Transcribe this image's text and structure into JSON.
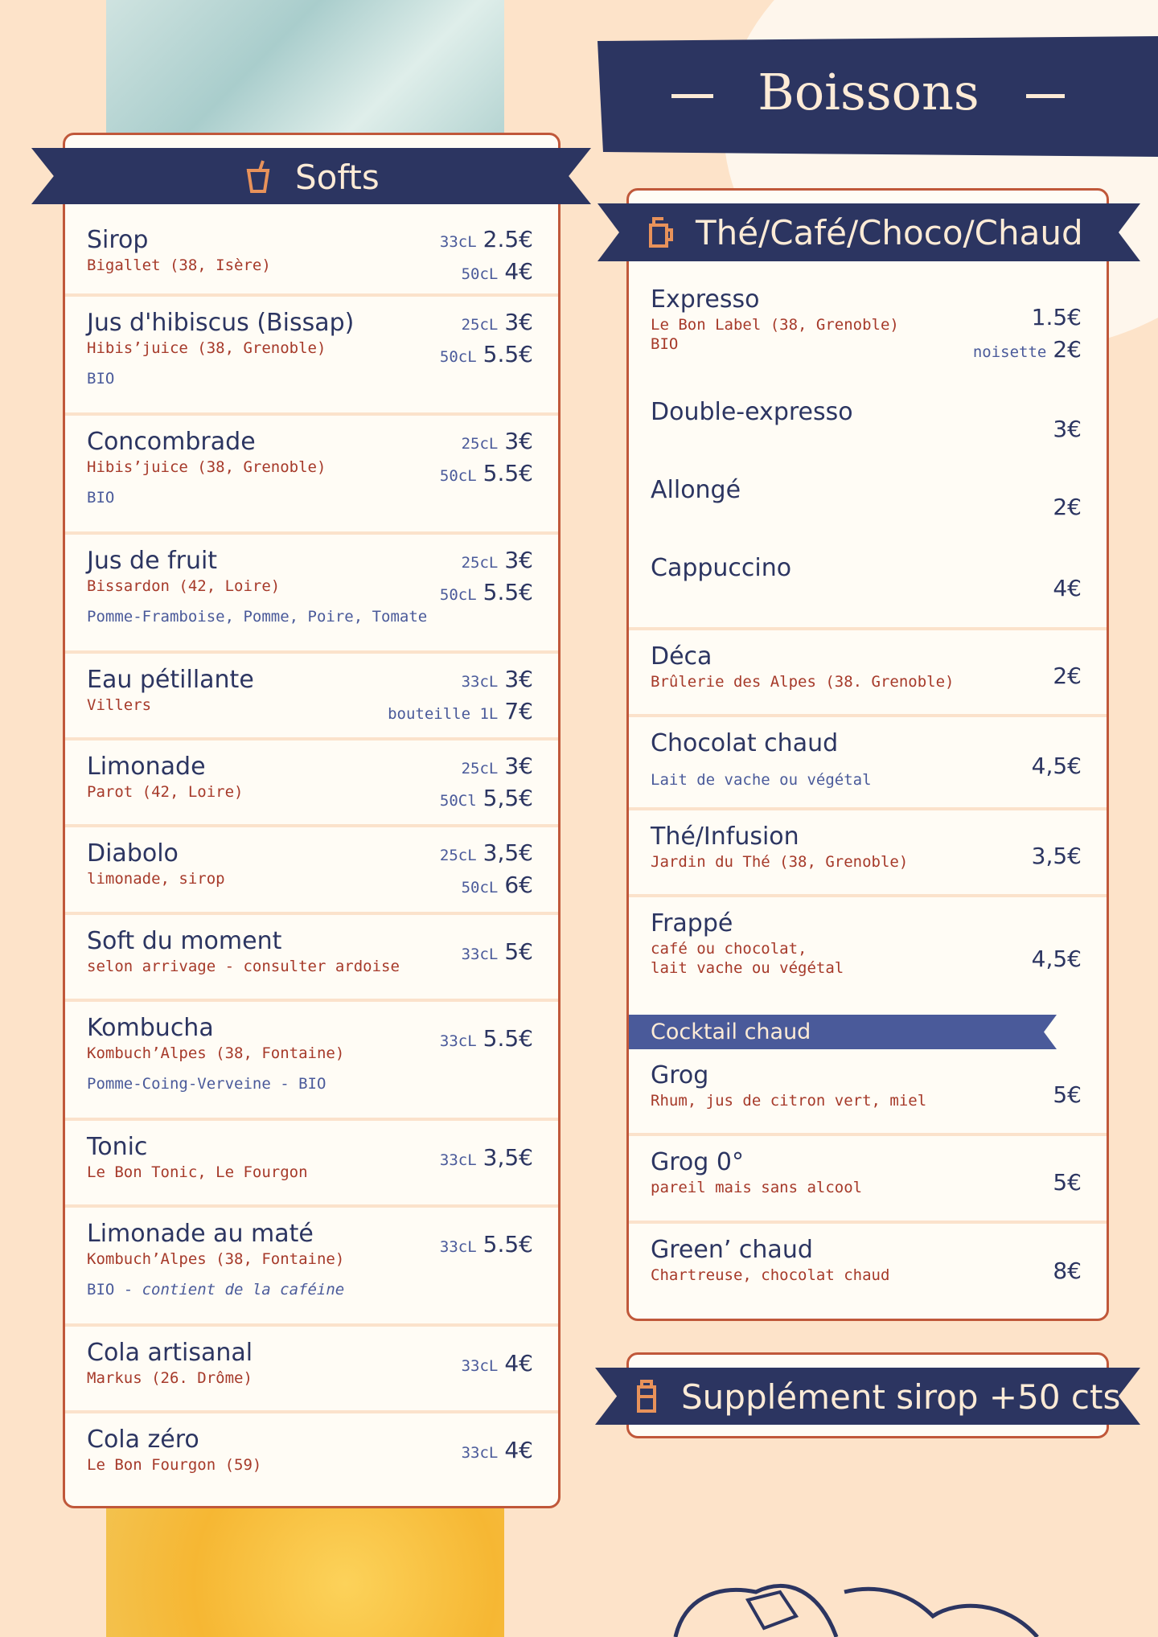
{
  "title": "Boissons",
  "softs": {
    "title": "Softs",
    "items": [
      {
        "name": "Sirop",
        "origin": [
          "Bigallet (38, Isère)"
        ],
        "prices": [
          {
            "size": "33cL",
            "price": "2.5€"
          },
          {
            "size": "50cL",
            "price": "4€"
          }
        ]
      },
      {
        "name": "Jus d'hibiscus (Bissap)",
        "origin": [
          "Hibis’juice (38, Grenoble)"
        ],
        "note": [
          {
            "text": "BIO"
          }
        ],
        "prices": [
          {
            "size": "25cL",
            "price": "3€"
          },
          {
            "size": "50cL",
            "price": "5.5€"
          }
        ]
      },
      {
        "name": "Concombrade",
        "origin": [
          "Hibis’juice (38, Grenoble)"
        ],
        "note": [
          {
            "text": "BIO"
          }
        ],
        "prices": [
          {
            "size": "25cL",
            "price": "3€"
          },
          {
            "size": "50cL",
            "price": "5.5€"
          }
        ]
      },
      {
        "name": "Jus de fruit",
        "origin": [
          "Bissardon (42, Loire)"
        ],
        "note": [
          {
            "text": "Pomme-Framboise, Pomme, Poire, Tomate"
          }
        ],
        "prices": [
          {
            "size": "25cL",
            "price": "3€"
          },
          {
            "size": "50cL",
            "price": "5.5€"
          }
        ]
      },
      {
        "name": "Eau pétillante",
        "origin": [
          "Villers"
        ],
        "prices": [
          {
            "size": "33cL",
            "price": "3€"
          },
          {
            "size": "bouteille 1L",
            "price": "7€"
          }
        ]
      },
      {
        "name": "Limonade",
        "origin": [
          "Parot (42, Loire)"
        ],
        "prices": [
          {
            "size": "25cL",
            "price": "3€"
          },
          {
            "size": "50Cl",
            "price": "5,5€"
          }
        ]
      },
      {
        "name": "Diabolo",
        "origin": [
          "limonade, sirop"
        ],
        "prices": [
          {
            "size": "25cL",
            "price": "3,5€"
          },
          {
            "size": "50cL",
            "price": "6€"
          }
        ]
      },
      {
        "name": "Soft du moment",
        "origin": [
          "selon arrivage - consulter ardoise"
        ],
        "prices": [
          {
            "size": "33cL",
            "price": "5€"
          }
        ]
      },
      {
        "name": "Kombucha",
        "origin": [
          "Kombuch’Alpes (38, Fontaine)"
        ],
        "note": [
          {
            "text": "Pomme-Coing-Verveine - BIO"
          }
        ],
        "prices": [
          {
            "size": "33cL",
            "price": "5.5€"
          }
        ]
      },
      {
        "name": "Tonic",
        "origin": [
          "Le Bon Tonic, Le Fourgon"
        ],
        "prices": [
          {
            "size": "33cL",
            "price": "3,5€"
          }
        ]
      },
      {
        "name": "Limonade au maté",
        "origin": [
          "Kombuch’Alpes (38, Fontaine)"
        ],
        "note": [
          {
            "text": "BIO -"
          },
          {
            "text": "contient de la caféine",
            "italic": true
          }
        ],
        "prices": [
          {
            "size": "33cL",
            "price": "5.5€"
          }
        ]
      },
      {
        "name": "Cola artisanal",
        "origin": [
          "Markus (26. Drôme)"
        ],
        "prices": [
          {
            "size": "33cL",
            "price": "4€"
          }
        ]
      },
      {
        "name": "Cola zéro",
        "origin": [
          "Le Bon Fourgon (59)"
        ],
        "prices": [
          {
            "size": "33cL",
            "price": "4€"
          }
        ]
      }
    ]
  },
  "hot": {
    "title": "Thé/Café/Choco/Chaud",
    "items": [
      {
        "name": "Expresso",
        "origin": [
          "Le Bon Label (38, Grenoble)",
          "BIO"
        ],
        "prices": [
          {
            "price": "1.5€"
          },
          {
            "size": "noisette",
            "price": "2€"
          }
        ]
      },
      {
        "name": "Double-expresso",
        "prices": [
          {
            "price": "3€"
          }
        ]
      },
      {
        "name": "Allongé",
        "prices": [
          {
            "price": "2€"
          }
        ]
      },
      {
        "name": "Cappuccino",
        "prices": [
          {
            "price": "4€"
          }
        ]
      },
      {
        "name": "Déca",
        "origin": [
          "Brûlerie des Alpes (38. Grenoble)"
        ],
        "prices": [
          {
            "price": "2€"
          }
        ]
      },
      {
        "name": "Chocolat chaud",
        "note": [
          {
            "text": "Lait de vache ou végétal"
          }
        ],
        "prices": [
          {
            "price": "4,5€"
          }
        ]
      },
      {
        "name": "Thé/Infusion",
        "origin": [
          "Jardin du Thé (38, Grenoble)"
        ],
        "prices": [
          {
            "price": "3,5€"
          }
        ]
      },
      {
        "name": "Frappé",
        "origin": [
          "café ou chocolat,",
          "lait vache ou végétal"
        ],
        "prices": [
          {
            "price": "4,5€"
          }
        ]
      }
    ],
    "cocktail": {
      "title": "Cocktail chaud",
      "items": [
        {
          "name": "Grog",
          "origin": [
            "Rhum, jus de citron vert, miel"
          ],
          "prices": [
            {
              "price": "5€"
            }
          ]
        },
        {
          "name": "Grog 0°",
          "origin": [
            "pareil mais sans alcool"
          ],
          "prices": [
            {
              "price": "5€"
            }
          ]
        },
        {
          "name": "Green’ chaud",
          "origin": [
            "Chartreuse, chocolat chaud"
          ],
          "prices": [
            {
              "price": "8€"
            }
          ]
        }
      ]
    }
  },
  "supplement": "Supplément sirop +50 cts"
}
